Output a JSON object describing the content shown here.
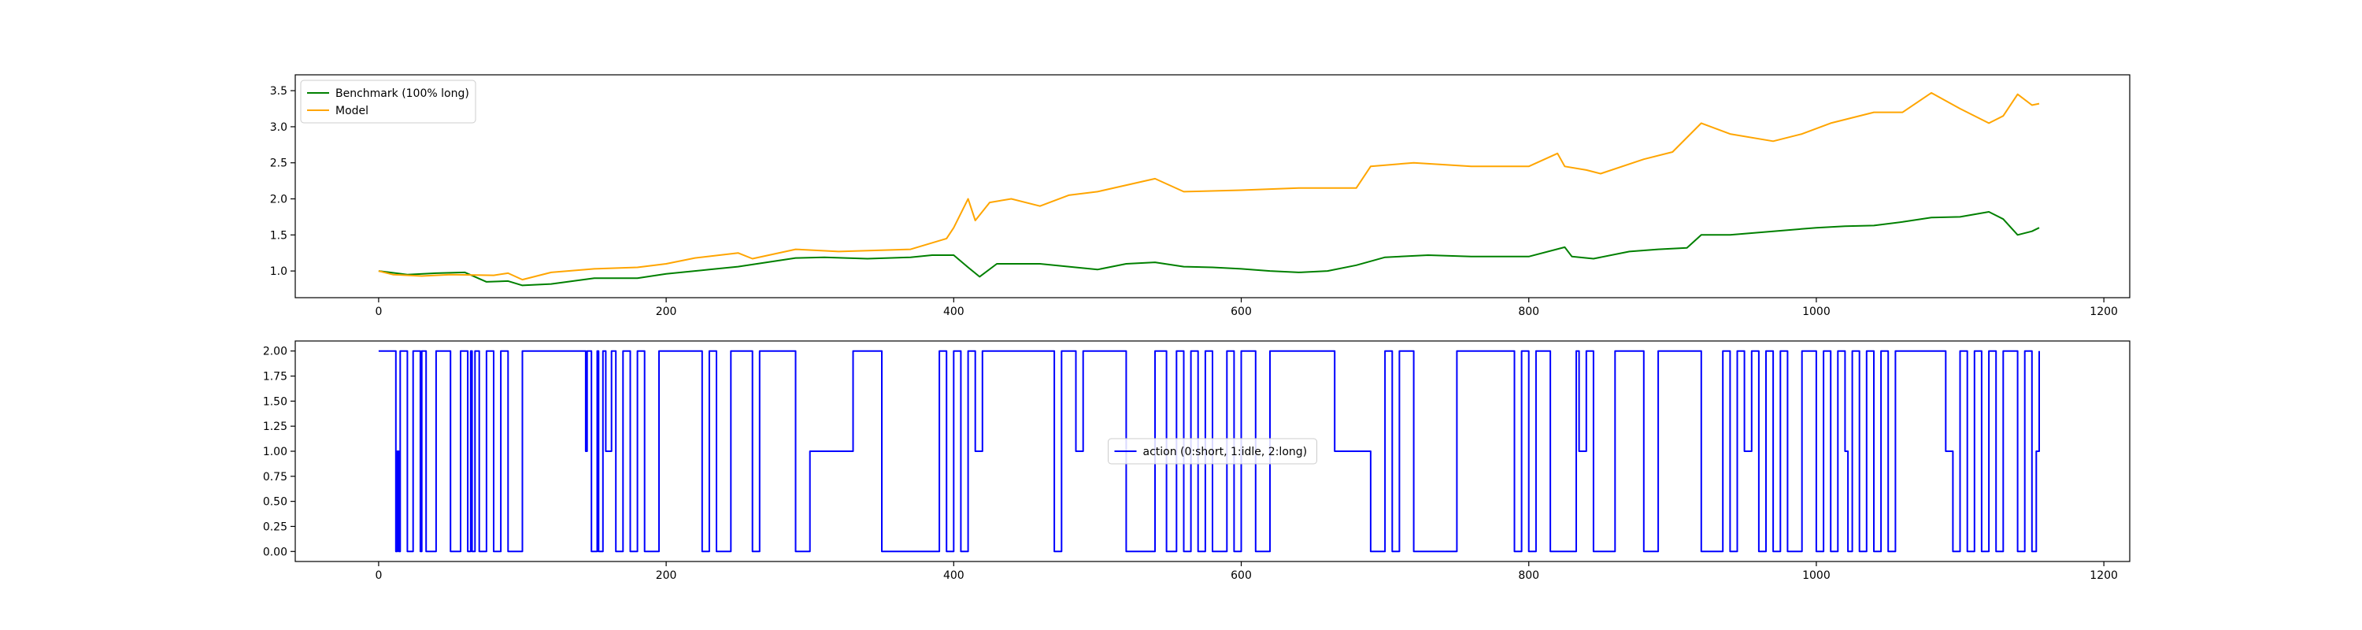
{
  "chart_data": [
    {
      "type": "line",
      "title": "",
      "xlabel": "",
      "ylabel": "",
      "xlim": [
        -58,
        1218
      ],
      "ylim": [
        0.63,
        3.72
      ],
      "xticks": [
        0,
        200,
        400,
        600,
        800,
        1000,
        1200
      ],
      "xtick_labels": [
        "0",
        "200",
        "400",
        "600",
        "800",
        "1000",
        "1200"
      ],
      "yticks": [
        1.0,
        1.5,
        2.0,
        2.5,
        3.0,
        3.5
      ],
      "ytick_labels": [
        "1.0",
        "1.5",
        "2.0",
        "2.5",
        "3.0",
        "3.5"
      ],
      "grid": false,
      "legend_position": "upper left",
      "series": [
        {
          "name": "Benchmark (100% long)",
          "color": "#008000",
          "x": [
            0,
            20,
            40,
            60,
            75,
            90,
            100,
            120,
            150,
            180,
            200,
            230,
            250,
            270,
            290,
            310,
            340,
            370,
            385,
            400,
            410,
            418,
            430,
            460,
            480,
            500,
            520,
            540,
            560,
            580,
            600,
            620,
            640,
            660,
            680,
            700,
            730,
            760,
            800,
            825,
            830,
            845,
            870,
            890,
            910,
            920,
            940,
            970,
            1000,
            1020,
            1040,
            1060,
            1080,
            1100,
            1120,
            1130,
            1140,
            1150,
            1155
          ],
          "y": [
            1.0,
            0.95,
            0.97,
            0.98,
            0.85,
            0.86,
            0.8,
            0.82,
            0.9,
            0.9,
            0.96,
            1.02,
            1.06,
            1.12,
            1.18,
            1.19,
            1.17,
            1.19,
            1.22,
            1.22,
            1.05,
            0.92,
            1.1,
            1.1,
            1.06,
            1.02,
            1.1,
            1.12,
            1.06,
            1.05,
            1.03,
            1.0,
            0.98,
            1.0,
            1.08,
            1.19,
            1.22,
            1.2,
            1.2,
            1.33,
            1.2,
            1.17,
            1.27,
            1.3,
            1.32,
            1.5,
            1.5,
            1.55,
            1.6,
            1.62,
            1.63,
            1.68,
            1.74,
            1.75,
            1.82,
            1.72,
            1.5,
            1.55,
            1.6
          ]
        },
        {
          "name": "Model",
          "color": "#FFA500",
          "x": [
            0,
            10,
            30,
            50,
            80,
            90,
            100,
            120,
            150,
            180,
            200,
            220,
            250,
            260,
            290,
            320,
            370,
            395,
            400,
            410,
            415,
            425,
            440,
            460,
            480,
            500,
            540,
            560,
            600,
            640,
            680,
            690,
            720,
            760,
            800,
            820,
            825,
            840,
            850,
            880,
            900,
            920,
            940,
            970,
            990,
            1010,
            1040,
            1060,
            1080,
            1100,
            1120,
            1130,
            1140,
            1150,
            1155
          ],
          "y": [
            1.0,
            0.95,
            0.93,
            0.95,
            0.94,
            0.97,
            0.88,
            0.98,
            1.03,
            1.05,
            1.1,
            1.18,
            1.25,
            1.17,
            1.3,
            1.27,
            1.3,
            1.45,
            1.6,
            2.0,
            1.7,
            1.95,
            2.0,
            1.9,
            2.05,
            2.1,
            2.28,
            2.1,
            2.12,
            2.15,
            2.15,
            2.45,
            2.5,
            2.45,
            2.45,
            2.63,
            2.45,
            2.4,
            2.35,
            2.55,
            2.65,
            3.05,
            2.9,
            2.8,
            2.9,
            3.05,
            3.2,
            3.2,
            3.47,
            3.25,
            3.05,
            3.15,
            3.45,
            3.3,
            3.32
          ]
        }
      ]
    },
    {
      "type": "line",
      "title": "",
      "xlabel": "",
      "ylabel": "",
      "xlim": [
        -58,
        1218
      ],
      "ylim": [
        -0.1,
        2.1
      ],
      "xticks": [
        0,
        200,
        400,
        600,
        800,
        1000,
        1200
      ],
      "xtick_labels": [
        "0",
        "200",
        "400",
        "600",
        "800",
        "1000",
        "1200"
      ],
      "yticks": [
        0.0,
        0.25,
        0.5,
        0.75,
        1.0,
        1.25,
        1.5,
        1.75,
        2.0
      ],
      "ytick_labels": [
        "0.00",
        "0.25",
        "0.50",
        "0.75",
        "1.00",
        "1.25",
        "1.50",
        "1.75",
        "2.00"
      ],
      "grid": false,
      "legend_position": "center",
      "series": [
        {
          "name": "action (0:short, 1:idle, 2:long)",
          "color": "#0000FF",
          "step": true,
          "x": [
            0,
            12,
            13,
            14,
            15,
            20,
            24,
            29,
            30,
            33,
            40,
            50,
            57,
            62,
            64,
            65,
            67,
            70,
            75,
            80,
            85,
            90,
            100,
            144,
            145,
            148,
            152,
            153,
            156,
            158,
            162,
            165,
            170,
            175,
            180,
            185,
            195,
            225,
            230,
            235,
            245,
            260,
            265,
            290,
            300,
            330,
            350,
            390,
            395,
            400,
            405,
            410,
            415,
            420,
            430,
            470,
            475,
            485,
            490,
            520,
            540,
            548,
            555,
            560,
            565,
            570,
            575,
            580,
            590,
            595,
            600,
            610,
            620,
            665,
            690,
            700,
            705,
            710,
            720,
            750,
            790,
            795,
            800,
            805,
            815,
            833,
            835,
            840,
            845,
            860,
            880,
            890,
            920,
            935,
            940,
            945,
            950,
            955,
            960,
            965,
            970,
            975,
            980,
            990,
            1000,
            1005,
            1010,
            1015,
            1020,
            1022,
            1025,
            1030,
            1035,
            1040,
            1045,
            1050,
            1055,
            1060,
            1090,
            1095,
            1100,
            1105,
            1110,
            1115,
            1120,
            1125,
            1130,
            1140,
            1145,
            1150,
            1153,
            1155
          ],
          "y": [
            2,
            0,
            1,
            0,
            2,
            0,
            2,
            0,
            2,
            0,
            2,
            0,
            2,
            0,
            2,
            0,
            2,
            0,
            2,
            0,
            2,
            0,
            2,
            1,
            2,
            0,
            2,
            0,
            2,
            1,
            2,
            0,
            2,
            0,
            2,
            0,
            2,
            0,
            2,
            0,
            2,
            0,
            2,
            0,
            1,
            2,
            0,
            2,
            0,
            2,
            0,
            2,
            1,
            2,
            2,
            0,
            2,
            1,
            2,
            0,
            2,
            0,
            2,
            0,
            2,
            0,
            2,
            0,
            2,
            0,
            2,
            0,
            2,
            1,
            0,
            2,
            0,
            2,
            0,
            2,
            0,
            2,
            0,
            2,
            0,
            2,
            1,
            2,
            0,
            2,
            0,
            2,
            0,
            2,
            0,
            2,
            1,
            2,
            0,
            2,
            0,
            2,
            0,
            2,
            0,
            2,
            0,
            2,
            1,
            0,
            2,
            0,
            2,
            0,
            2,
            0,
            2,
            2,
            1,
            0,
            2,
            0,
            2,
            0,
            2,
            0,
            2,
            0,
            2,
            0,
            1,
            2
          ]
        }
      ]
    }
  ]
}
